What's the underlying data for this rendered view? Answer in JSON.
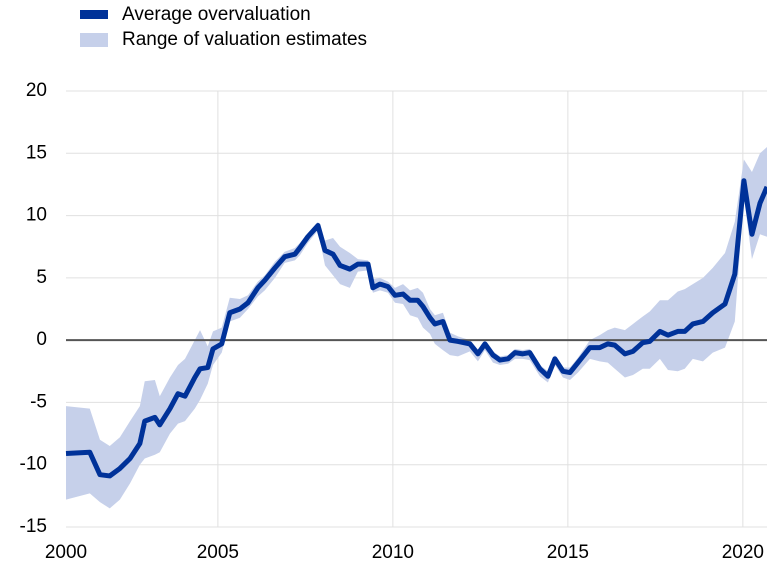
{
  "chart_data": {
    "type": "line",
    "x": [
      2000.66,
      2001.34,
      2001.63,
      2001.91,
      2002.2,
      2002.49,
      2002.77,
      2002.91,
      2003.2,
      2003.34,
      2003.63,
      2003.86,
      2004.06,
      2004.34,
      2004.49,
      2004.71,
      2004.86,
      2005.11,
      2005.34,
      2005.63,
      2005.86,
      2006.14,
      2006.34,
      2006.63,
      2006.91,
      2007.2,
      2007.34,
      2007.57,
      2007.86,
      2008.06,
      2008.29,
      2008.49,
      2008.77,
      2009.0,
      2009.29,
      2009.43,
      2009.63,
      2009.86,
      2010.06,
      2010.29,
      2010.49,
      2010.71,
      2010.86,
      2011.06,
      2011.2,
      2011.43,
      2011.63,
      2011.86,
      2012.2,
      2012.43,
      2012.63,
      2012.86,
      2013.06,
      2013.29,
      2013.49,
      2013.71,
      2013.91,
      2014.2,
      2014.43,
      2014.63,
      2014.86,
      2015.06,
      2015.29,
      2015.63,
      2015.91,
      2016.14,
      2016.34,
      2016.63,
      2016.86,
      2017.14,
      2017.34,
      2017.63,
      2017.86,
      2018.14,
      2018.34,
      2018.57,
      2018.86,
      2019.14,
      2019.49,
      2019.77,
      2020.03,
      2020.26,
      2020.49,
      2020.69
    ],
    "series": [
      {
        "name": "Average overvaluation",
        "color": "#003299",
        "values": [
          -9.1,
          -9.0,
          -10.8,
          -10.9,
          -10.3,
          -9.5,
          -8.3,
          -6.5,
          -6.2,
          -6.8,
          -5.5,
          -4.3,
          -4.5,
          -3.0,
          -2.3,
          -2.2,
          -0.7,
          -0.3,
          2.2,
          2.5,
          3.0,
          4.2,
          4.8,
          5.8,
          6.7,
          6.9,
          7.4,
          8.3,
          9.2,
          7.2,
          6.9,
          6.0,
          5.7,
          6.1,
          6.1,
          4.2,
          4.5,
          4.3,
          3.6,
          3.7,
          3.2,
          3.2,
          2.7,
          1.8,
          1.3,
          1.5,
          0.0,
          -0.1,
          -0.3,
          -1.1,
          -0.3,
          -1.2,
          -1.6,
          -1.5,
          -1.0,
          -1.1,
          -1.0,
          -2.3,
          -2.9,
          -1.5,
          -2.5,
          -2.6,
          -1.8,
          -0.6,
          -0.6,
          -0.3,
          -0.4,
          -1.1,
          -0.9,
          -0.2,
          -0.1,
          0.7,
          0.4,
          0.7,
          0.7,
          1.3,
          1.5,
          2.2,
          2.9,
          5.3,
          12.8,
          8.5,
          11.0,
          12.3
        ]
      }
    ],
    "band": {
      "name": "Range of valuation estimates",
      "color": "#c6d0ea",
      "upper": [
        -5.3,
        -5.5,
        -8.0,
        -8.5,
        -7.8,
        -6.5,
        -5.3,
        -3.3,
        -3.2,
        -4.5,
        -3.0,
        -2.0,
        -1.5,
        0.0,
        0.8,
        -0.5,
        0.7,
        1.0,
        3.4,
        3.3,
        3.6,
        4.7,
        5.2,
        6.3,
        7.1,
        7.4,
        7.8,
        8.6,
        9.5,
        8.0,
        8.2,
        7.5,
        7.0,
        6.5,
        6.4,
        4.9,
        5.0,
        4.7,
        4.2,
        4.5,
        4.0,
        4.2,
        3.8,
        2.5,
        2.0,
        2.2,
        0.6,
        0.3,
        0.0,
        -0.8,
        -0.1,
        -0.9,
        -1.3,
        -1.2,
        -0.7,
        -0.8,
        -0.7,
        -2.0,
        -2.5,
        -1.2,
        -2.2,
        -2.2,
        -1.4,
        0.0,
        0.4,
        0.8,
        1.0,
        0.8,
        1.3,
        1.9,
        2.3,
        3.2,
        3.2,
        3.9,
        4.1,
        4.5,
        5.0,
        5.8,
        7.0,
        9.5,
        14.5,
        13.5,
        15.0,
        15.5
      ],
      "lower": [
        -12.8,
        -12.3,
        -13.0,
        -13.5,
        -12.8,
        -11.5,
        -10.0,
        -9.5,
        -9.2,
        -9.0,
        -7.5,
        -6.7,
        -6.5,
        -5.5,
        -4.8,
        -3.5,
        -2.0,
        -1.0,
        1.5,
        1.8,
        2.5,
        3.5,
        4.0,
        5.0,
        6.2,
        6.4,
        6.8,
        7.8,
        8.8,
        6.0,
        5.2,
        4.5,
        4.2,
        5.5,
        5.6,
        3.8,
        4.0,
        3.8,
        3.0,
        2.9,
        2.0,
        1.8,
        1.0,
        0.5,
        -0.3,
        -0.8,
        -1.2,
        -1.3,
        -0.9,
        -1.7,
        -0.8,
        -1.8,
        -2.0,
        -1.9,
        -1.5,
        -1.5,
        -1.6,
        -2.9,
        -3.4,
        -2.0,
        -3.0,
        -3.2,
        -2.6,
        -1.5,
        -1.7,
        -1.8,
        -2.3,
        -3.0,
        -2.8,
        -2.3,
        -2.3,
        -1.5,
        -2.4,
        -2.5,
        -2.3,
        -1.5,
        -1.7,
        -1.0,
        -0.6,
        1.5,
        11.5,
        6.5,
        8.5,
        8.3
      ]
    },
    "xlim": [
      2000.66,
      2020.69
    ],
    "xticks": [
      2000,
      2005,
      2010,
      2015,
      2020
    ],
    "ylim": [
      -15,
      20
    ],
    "yticks": [
      -15,
      -10,
      -5,
      0,
      5,
      10,
      15,
      20
    ],
    "grid": true
  }
}
